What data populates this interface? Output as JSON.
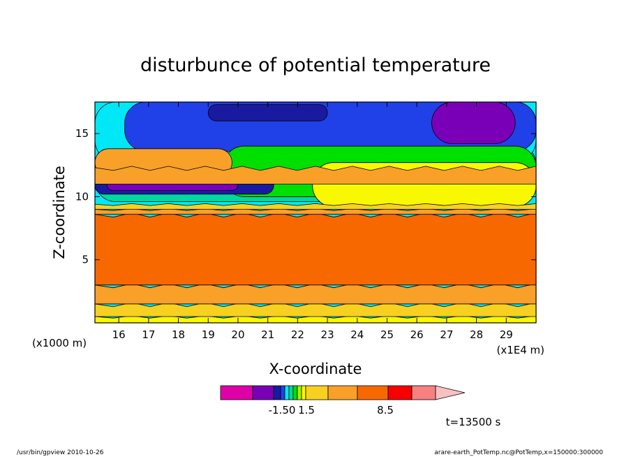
{
  "footer": {
    "left": "/usr/bin/gpview   2010-10-26",
    "right": "arare-earth_PotTemp.nc@PotTemp,x=150000:300000"
  },
  "time_label": "t=13500 s",
  "colors": {
    "frame": "#000000",
    "levels": [
      "#e000a8",
      "#7a00b8",
      "#1a1aa0",
      "#2040e8",
      "#00e8f8",
      "#00d8a0",
      "#00e000",
      "#a8f000",
      "#f8f800",
      "#f8d020",
      "#f8a028",
      "#f86800",
      "#f80000",
      "#f88080",
      "#f8c0c0"
    ]
  },
  "chart_data": {
    "type": "heatmap",
    "title": "disturbunce of potential temperature",
    "xlabel": "X-coordinate",
    "ylabel": "Z-coordinate",
    "x_unit_left": "(x1000 m)",
    "x_unit_right": "(x1E4 m)",
    "xlim": [
      15.2,
      30.0
    ],
    "ylim": [
      0.0,
      17.5
    ],
    "x_ticks": [
      16,
      17,
      18,
      19,
      20,
      21,
      22,
      23,
      24,
      25,
      26,
      27,
      28,
      29
    ],
    "y_ticks": [
      5,
      10,
      15
    ],
    "colorbar": {
      "tick_labels": [
        "-1.50",
        "1.5",
        "8.5"
      ],
      "tick_values": [
        -1.5,
        1.5,
        8.5
      ],
      "segments": 15
    },
    "bands": [
      {
        "level": 8,
        "y_top": 0.5,
        "y_bot": 0.0
      },
      {
        "level": 9,
        "y_top": 1.5,
        "y_bot": 0.5
      },
      {
        "level": 10,
        "y_top": 3.0,
        "y_bot": 1.5
      },
      {
        "level": 11,
        "y_top": 8.6,
        "y_bot": 3.0
      },
      {
        "level": 10,
        "y_top": 9.0,
        "y_bot": 8.6
      },
      {
        "level": 9,
        "y_top": 9.4,
        "y_bot": 9.0
      },
      {
        "level": 10,
        "y_top": 12.3,
        "y_bot": 11.0
      }
    ],
    "blobs": [
      {
        "level": 5,
        "x": 15.2,
        "w": 14.8,
        "z": 9.6,
        "h": 4.6
      },
      {
        "level": 4,
        "x": 15.2,
        "w": 14.8,
        "z": 12.8,
        "h": 4.7
      },
      {
        "level": 3,
        "x": 16.2,
        "w": 13.8,
        "z": 13.6,
        "h": 3.9
      },
      {
        "level": 2,
        "x": 19.0,
        "w": 4.0,
        "z": 16.0,
        "h": 1.3
      },
      {
        "level": 1,
        "x": 26.5,
        "w": 2.8,
        "z": 14.2,
        "h": 3.3
      },
      {
        "level": 6,
        "x": 19.5,
        "w": 10.5,
        "z": 10.0,
        "h": 4.0
      },
      {
        "level": 8,
        "x": 22.5,
        "w": 7.5,
        "z": 9.2,
        "h": 3.5
      },
      {
        "level": 10,
        "x": 15.2,
        "w": 4.6,
        "z": 11.6,
        "h": 2.2
      },
      {
        "level": 2,
        "x": 15.2,
        "w": 6.0,
        "z": 10.2,
        "h": 1.4
      },
      {
        "level": 1,
        "x": 15.6,
        "w": 4.4,
        "z": 10.5,
        "h": 0.9
      }
    ]
  }
}
